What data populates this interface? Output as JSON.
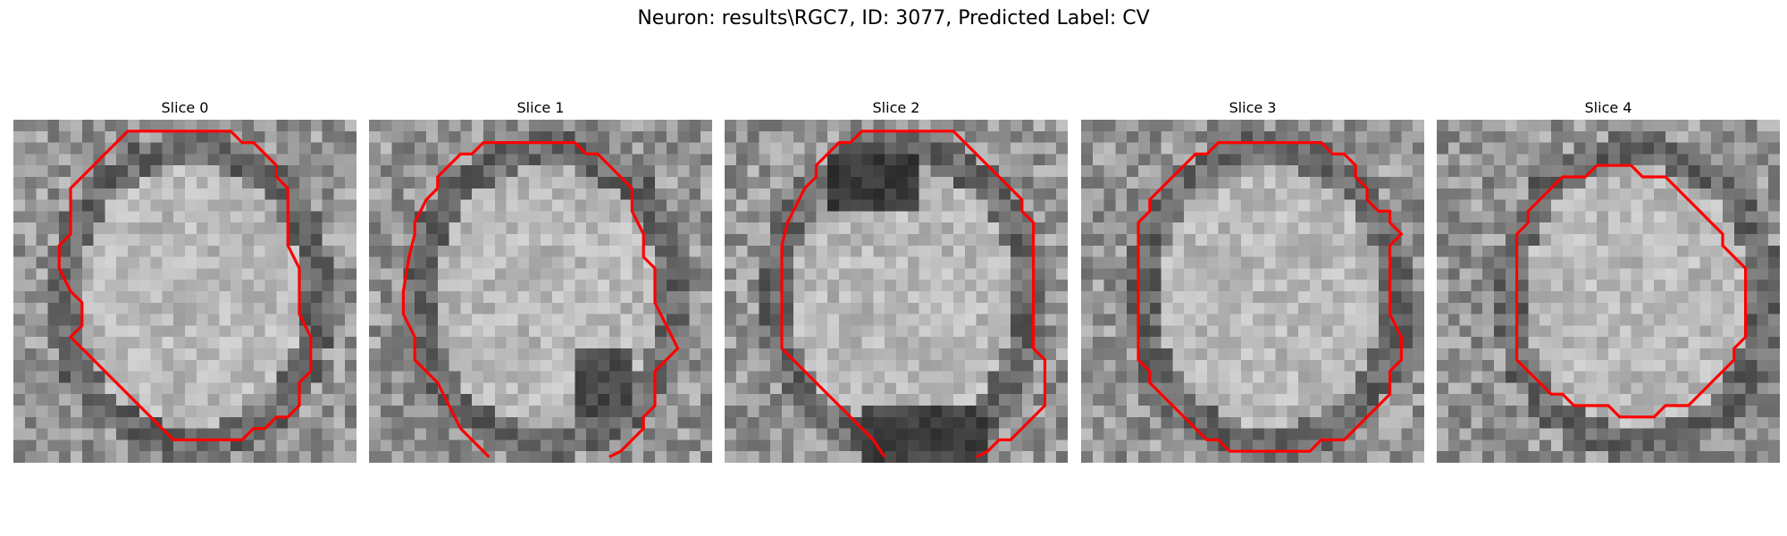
{
  "figure": {
    "title": "Neuron: results\\RGC7, ID: 3077, Predicted Label: CV"
  },
  "slices": [
    {
      "title": "Slice 0"
    },
    {
      "title": "Slice 1"
    },
    {
      "title": "Slice 2"
    },
    {
      "title": "Slice 3"
    },
    {
      "title": "Slice 4"
    }
  ],
  "style": {
    "contour_color": "#ff0000"
  }
}
